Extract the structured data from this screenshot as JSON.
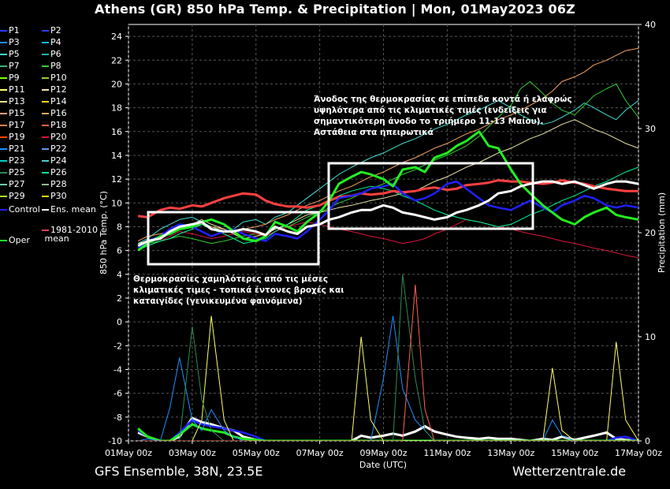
{
  "title": "Athens  (GR)  850 hPa Temp. & Precipitation | Mon, 01May2023 06Z",
  "footer": {
    "model": "GFS Ensemble, 38N, 23.5E",
    "source": "Wetterzentrale.de"
  },
  "legend": [
    {
      "label": "P1",
      "color": "#2a3cff"
    },
    {
      "label": "P2",
      "color": "#2a3cff"
    },
    {
      "label": "P3",
      "color": "#1e90ff"
    },
    {
      "label": "P4",
      "color": "#00bfff"
    },
    {
      "label": "P5",
      "color": "#40e0d0"
    },
    {
      "label": "P6",
      "color": "#20b2aa"
    },
    {
      "label": "P7",
      "color": "#3cb371"
    },
    {
      "label": "P8",
      "color": "#32cd32"
    },
    {
      "label": "P9",
      "color": "#7cfc00"
    },
    {
      "label": "P10",
      "color": "#9acd32"
    },
    {
      "label": "P11",
      "color": "#ffff66"
    },
    {
      "label": "P12",
      "color": "#eee8aa"
    },
    {
      "label": "P13",
      "color": "#f0e68c"
    },
    {
      "label": "P14",
      "color": "#ffd700"
    },
    {
      "label": "P15",
      "color": "#ffa07a"
    },
    {
      "label": "P16",
      "color": "#f4a460"
    },
    {
      "label": "P17",
      "color": "#ff7f50"
    },
    {
      "label": "P18",
      "color": "#ff6347"
    },
    {
      "label": "P19",
      "color": "#ff4500"
    },
    {
      "label": "P20",
      "color": "#dc143c"
    },
    {
      "label": "P21",
      "color": "#1e90ff"
    },
    {
      "label": "P22",
      "color": "#6495ed"
    },
    {
      "label": "P23",
      "color": "#00ced1"
    },
    {
      "label": "P24",
      "color": "#48d1cc"
    },
    {
      "label": "P25",
      "color": "#2e8b57"
    },
    {
      "label": "P26",
      "color": "#00fa9a"
    },
    {
      "label": "P27",
      "color": "#66cdaa"
    },
    {
      "label": "P28",
      "color": "#8fbc8f"
    },
    {
      "label": "P29",
      "color": "#adff2f"
    },
    {
      "label": "P30",
      "color": "#ffff00"
    },
    {
      "label": "Control",
      "color": "#2020ff"
    },
    {
      "label": "Ens. mean",
      "color": "#ffffff"
    },
    {
      "label": "Oper",
      "color": "#22ee22"
    },
    {
      "label": "1981-2010 mean",
      "color": "#ff4040"
    }
  ],
  "chart_data": {
    "type": "line",
    "xlabel": "Date (UTC)",
    "ylabel": "850 hPa Temp. (°C)",
    "y2label": "Precipitation (mm)",
    "ylim": [
      -10,
      25
    ],
    "y2lim": [
      0,
      40
    ],
    "grid": true,
    "x_ticks": [
      "01May 00z",
      "03May 00z",
      "05May 00z",
      "07May 00z",
      "09May 00z",
      "11May 00z",
      "13May 00z",
      "15May 00z",
      "17May 00z"
    ],
    "y_ticks": [
      24,
      22,
      20,
      18,
      16,
      14,
      12,
      10,
      8,
      6,
      4,
      2,
      0,
      -2,
      -4,
      -6,
      -8,
      -10
    ],
    "y2_ticks": [
      40,
      30,
      20,
      10,
      0
    ],
    "x_days": [
      0.3,
      0.6,
      1,
      1.3,
      1.6,
      2,
      2.3,
      2.6,
      3,
      3.3,
      3.6,
      4,
      4.3,
      4.6,
      5,
      5.3,
      5.6,
      6,
      6.3,
      6.6,
      7,
      7.3,
      7.6,
      8,
      8.3,
      8.6,
      9,
      9.3,
      9.6,
      10,
      10.3,
      10.6,
      11,
      11.3,
      11.6,
      12,
      12.3,
      12.6,
      13,
      13.3,
      13.6,
      14,
      14.3,
      14.6,
      15,
      15.3,
      15.6,
      16
    ],
    "series": [
      {
        "name": "Ens. mean",
        "values": [
          6.4,
          6.8,
          7.0,
          7.6,
          8.0,
          8.2,
          8.4,
          7.8,
          7.6,
          7.6,
          7.8,
          7.6,
          7.3,
          8.0,
          7.6,
          7.4,
          8.0,
          8.2,
          8.6,
          8.8,
          9.2,
          9.4,
          9.4,
          9.8,
          9.6,
          9.2,
          9.0,
          8.8,
          8.6,
          8.8,
          9.2,
          9.4,
          9.8,
          10.2,
          10.8,
          11.0,
          11.4,
          11.6,
          11.8,
          11.8,
          11.6,
          11.8,
          11.5,
          11.2,
          11.6,
          11.8,
          11.8,
          11.6
        ]
      },
      {
        "name": "1981-2010 mean",
        "values": [
          8.9,
          8.8,
          9.4,
          9.6,
          9.5,
          9.8,
          9.7,
          10.0,
          10.4,
          10.6,
          10.8,
          10.7,
          10.2,
          9.9,
          9.7,
          9.7,
          9.6,
          9.8,
          10.2,
          10.5,
          10.6,
          10.8,
          10.7,
          10.8,
          11.0,
          10.9,
          11.0,
          11.2,
          11.3,
          11.1,
          11.2,
          11.5,
          11.6,
          11.7,
          11.9,
          11.8,
          11.8,
          11.7,
          11.6,
          11.7,
          11.9,
          11.7,
          11.6,
          11.4,
          11.2,
          11.1,
          11.0,
          11.0
        ]
      },
      {
        "name": "Control",
        "values": [
          6.2,
          6.8,
          7.2,
          7.8,
          8.2,
          8.0,
          7.6,
          7.2,
          7.6,
          7.8,
          7.4,
          7.0,
          6.8,
          7.4,
          7.2,
          7.0,
          7.6,
          8.6,
          9.4,
          10.4,
          10.6,
          10.8,
          11.2,
          11.4,
          11.6,
          10.8,
          10.2,
          10.4,
          10.8,
          11.6,
          11.8,
          11.2,
          10.4,
          9.8,
          9.6,
          9.4,
          9.8,
          10.2,
          9.6,
          9.2,
          9.8,
          10.2,
          10.6,
          10.4,
          9.8,
          9.6,
          9.8,
          9.6
        ]
      },
      {
        "name": "Oper",
        "values": [
          6.0,
          6.6,
          7.2,
          7.4,
          7.8,
          8.0,
          8.4,
          8.6,
          8.2,
          7.6,
          7.0,
          6.8,
          7.2,
          8.4,
          8.0,
          7.6,
          8.4,
          9.2,
          10.2,
          11.6,
          12.2,
          12.6,
          12.4,
          12.0,
          11.4,
          12.8,
          13.0,
          12.6,
          13.8,
          14.2,
          14.8,
          15.2,
          16.0,
          14.8,
          14.6,
          12.8,
          11.6,
          10.8,
          9.8,
          9.2,
          8.6,
          8.2,
          8.8,
          9.2,
          9.6,
          9.0,
          8.8,
          8.6
        ]
      },
      {
        "name": "P5",
        "values": [
          6.6,
          7.0,
          7.8,
          8.2,
          8.6,
          8.8,
          8.4,
          8.0,
          7.6,
          7.8,
          8.4,
          8.6,
          8.2,
          8.8,
          9.2,
          9.8,
          10.4,
          11.2,
          11.8,
          12.4,
          13.0,
          13.4,
          13.8,
          14.2,
          14.6,
          15.0,
          15.4,
          15.8,
          16.2,
          16.6,
          17.0,
          17.4,
          17.8,
          18.2,
          18.6,
          18.0,
          17.4,
          17.0,
          16.6,
          16.8,
          17.2,
          17.8,
          18.4,
          18.0,
          17.4,
          17.0,
          17.8,
          18.6
        ]
      },
      {
        "name": "P8",
        "values": [
          6.4,
          6.6,
          6.8,
          7.0,
          7.2,
          7.0,
          6.8,
          6.6,
          6.8,
          7.0,
          7.2,
          7.4,
          7.2,
          7.6,
          8.0,
          8.4,
          8.8,
          9.2,
          9.6,
          10.0,
          10.4,
          10.8,
          11.2,
          11.6,
          12.0,
          12.4,
          12.8,
          13.2,
          13.6,
          14.0,
          14.4,
          14.8,
          15.6,
          16.4,
          17.2,
          18.2,
          19.6,
          20.2,
          19.2,
          18.4,
          17.8,
          17.4,
          18.2,
          19.0,
          19.6,
          20.0,
          18.6,
          17.2
        ]
      },
      {
        "name": "P16",
        "values": [
          6.8,
          7.2,
          7.4,
          7.6,
          7.8,
          8.0,
          8.2,
          8.0,
          7.8,
          7.6,
          7.8,
          8.0,
          8.2,
          8.6,
          9.0,
          9.4,
          9.8,
          10.2,
          10.6,
          11.0,
          11.4,
          11.8,
          12.2,
          12.6,
          13.0,
          13.4,
          13.8,
          14.2,
          14.6,
          15.0,
          15.4,
          15.8,
          16.2,
          16.6,
          17.0,
          17.4,
          17.8,
          18.2,
          18.8,
          19.4,
          20.2,
          20.6,
          21.0,
          21.6,
          22.0,
          22.4,
          22.8,
          23.0
        ]
      },
      {
        "name": "P20",
        "values": [
          6.2,
          6.4,
          6.8,
          7.2,
          7.6,
          7.4,
          7.2,
          7.0,
          7.2,
          7.4,
          7.6,
          7.4,
          7.2,
          7.6,
          8.0,
          8.2,
          8.4,
          8.2,
          8.0,
          7.8,
          7.6,
          7.4,
          7.2,
          7.0,
          6.8,
          6.6,
          6.8,
          7.0,
          7.4,
          7.8,
          8.2,
          8.6,
          8.4,
          8.2,
          8.0,
          7.8,
          7.6,
          7.4,
          7.2,
          7.0,
          6.8,
          6.6,
          6.4,
          6.2,
          6.0,
          5.8,
          5.6,
          5.4
        ]
      },
      {
        "name": "P12",
        "values": [
          6.6,
          6.8,
          7.0,
          7.4,
          7.8,
          8.2,
          8.6,
          8.2,
          7.8,
          7.4,
          7.0,
          7.2,
          7.4,
          7.8,
          8.2,
          8.6,
          9.0,
          9.2,
          9.4,
          9.6,
          9.8,
          10.0,
          10.2,
          10.4,
          10.6,
          10.8,
          11.0,
          11.4,
          11.8,
          12.2,
          12.6,
          13.0,
          13.4,
          13.8,
          14.2,
          14.6,
          15.0,
          15.4,
          15.8,
          16.2,
          16.6,
          17.0,
          16.6,
          16.2,
          15.8,
          15.4,
          15.0,
          14.6
        ]
      },
      {
        "name": "P26",
        "values": [
          6.0,
          6.4,
          6.8,
          7.0,
          7.4,
          7.8,
          8.2,
          7.8,
          7.4,
          7.0,
          6.6,
          6.8,
          7.0,
          7.6,
          8.2,
          8.8,
          9.4,
          9.8,
          10.2,
          10.6,
          11.0,
          11.2,
          11.4,
          11.2,
          11.0,
          10.6,
          10.2,
          9.8,
          9.4,
          9.0,
          8.8,
          8.6,
          8.4,
          8.2,
          8.0,
          8.2,
          8.6,
          9.0,
          9.4,
          9.8,
          10.2,
          10.6,
          11.0,
          11.4,
          11.8,
          12.2,
          12.6,
          13.0
        ]
      }
    ],
    "precip_series": [
      {
        "name": "Ens. mean",
        "values": [
          0.8,
          0.4,
          0,
          0,
          0.4,
          2.2,
          1.8,
          1.6,
          1.2,
          1.0,
          0.4,
          0.1,
          0,
          0,
          0,
          0,
          0,
          0,
          0,
          0,
          0,
          0.5,
          0.3,
          0.5,
          0.7,
          0.5,
          0.9,
          1.4,
          0.9,
          0.6,
          0.4,
          0.3,
          0.2,
          0.3,
          0.2,
          0.2,
          0.1,
          0,
          0.2,
          0.1,
          0.4,
          0.1,
          0.3,
          0.5,
          0.8,
          0.2,
          0.1,
          0
        ]
      },
      {
        "name": "Control",
        "values": [
          1.0,
          0.4,
          0,
          0,
          0.8,
          2.0,
          1.6,
          1.4,
          1.2,
          1.0,
          0.8,
          0.4,
          0,
          0,
          0,
          0,
          0,
          0,
          0,
          0,
          0,
          0,
          0,
          0,
          0,
          0,
          0,
          0,
          0,
          0,
          0,
          0,
          0,
          0,
          0,
          0,
          0,
          0,
          0,
          0,
          0,
          0,
          0,
          0,
          0,
          0.3,
          0.4,
          0
        ]
      },
      {
        "name": "Oper",
        "values": [
          1.2,
          0.4,
          0,
          0,
          0.6,
          1.6,
          1.2,
          1.0,
          0.8,
          0.4,
          0.2,
          0.1,
          0,
          0,
          0,
          0,
          0,
          0,
          0,
          0,
          0,
          0,
          0,
          0,
          0,
          0,
          0,
          0,
          0,
          0,
          0,
          0,
          0,
          0,
          0,
          0,
          0,
          0,
          0,
          0,
          0,
          0,
          0,
          0,
          0,
          0,
          0,
          0
        ]
      },
      {
        "name": "P3",
        "values": [
          0,
          0.2,
          0,
          3.2,
          8.0,
          2.0,
          1.0,
          3.0,
          1.0,
          0.4,
          0,
          0,
          0,
          0,
          0,
          0,
          0,
          0,
          0,
          0,
          0,
          0,
          0,
          6.0,
          12.0,
          5.0,
          2.0,
          1.0,
          0,
          0,
          0,
          0,
          0,
          0,
          0,
          0,
          0,
          0,
          0,
          2.0,
          0.5,
          0,
          0,
          0,
          0,
          0,
          0,
          0
        ]
      },
      {
        "name": "P11",
        "values": [
          0,
          0,
          0,
          0,
          0,
          0,
          2.0,
          12.0,
          2.0,
          0,
          0,
          0,
          0,
          0,
          0,
          0,
          0,
          0,
          0,
          0,
          0,
          10.0,
          2.0,
          0,
          0,
          0,
          0,
          0,
          0,
          0,
          0,
          0,
          0,
          0,
          0,
          0,
          0,
          0,
          0,
          7.0,
          1.0,
          0,
          0,
          0,
          0,
          9.5,
          2.0,
          0
        ]
      },
      {
        "name": "P25",
        "values": [
          0,
          0,
          0,
          0,
          0,
          11.0,
          4.0,
          1.0,
          0,
          0,
          0,
          0,
          0,
          0,
          0,
          0,
          0,
          0,
          0,
          0,
          0,
          0,
          0,
          0,
          0,
          16.0,
          6.0,
          1.0,
          0,
          0,
          0,
          0,
          0,
          0,
          0,
          0,
          0,
          0,
          0,
          0,
          0,
          0,
          0,
          0,
          0,
          0,
          0,
          0
        ]
      },
      {
        "name": "P18",
        "values": [
          0,
          0,
          0,
          0,
          0,
          0,
          0,
          0,
          0,
          0,
          0,
          0,
          0,
          0,
          0,
          0,
          0,
          0,
          0,
          0,
          0,
          0,
          0,
          0,
          0,
          0,
          15.0,
          3.0,
          0,
          0,
          0,
          0,
          0,
          0,
          0,
          0,
          0,
          0,
          0,
          0,
          0,
          0,
          0,
          0,
          0,
          0,
          0,
          0
        ]
      }
    ],
    "annotations": [
      "Θερμοκρασίες χαμηλότερες από τις μέσες κλιματικές τιμες - τοπικά έντονες βροχές και καταιγίδες (γενικευμένα φαινόμενα)",
      "Άνοδος της θερμοκρασίας σε επίπεδα κοντά ή ελαφρώς υψηλότερα από τις κλιματικές τιμές (ενδείξεις για σημαντικότερη άνοδο το τριήμερο 11-13 Μαίου). Αστάθεια στα ηπειρωτικά"
    ]
  }
}
